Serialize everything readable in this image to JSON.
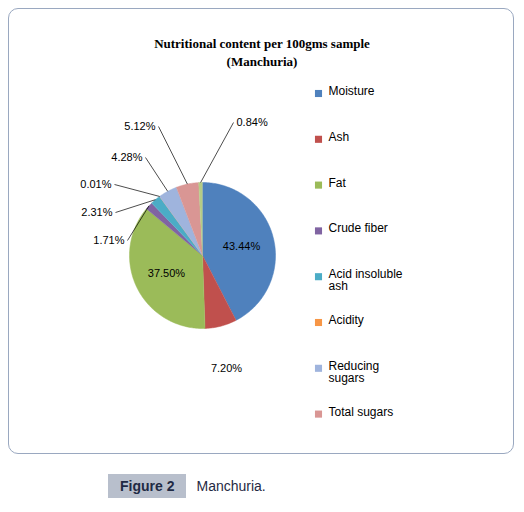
{
  "chart_data": {
    "type": "pie",
    "title": "Nutritional content per 100gms sample (Manchuria)",
    "categories": [
      "Moisture",
      "Ash",
      "Fat",
      "Crude fiber",
      "Acid insoluble ash",
      "Acidity",
      "Reducing sugars",
      "Total sugars",
      null
    ],
    "values": [
      43.44,
      7.2,
      37.5,
      1.71,
      2.31,
      0.01,
      4.28,
      5.12,
      0.84
    ],
    "value_labels": [
      "43.44%",
      "7.20%",
      "37.50%",
      "1.71%",
      "2.31%",
      "0.01%",
      "4.28%",
      "5.12%",
      "0.84%"
    ],
    "colors": [
      "#4f81bd",
      "#c0504d",
      "#9bbb59",
      "#8064a2",
      "#4bacc6",
      "#f79646",
      "#9fb4dd",
      "#d99694",
      "#b5cc85"
    ],
    "data_labels": true,
    "legend": "right",
    "figure_label": "Figure 2",
    "caption": "Manchuria."
  }
}
